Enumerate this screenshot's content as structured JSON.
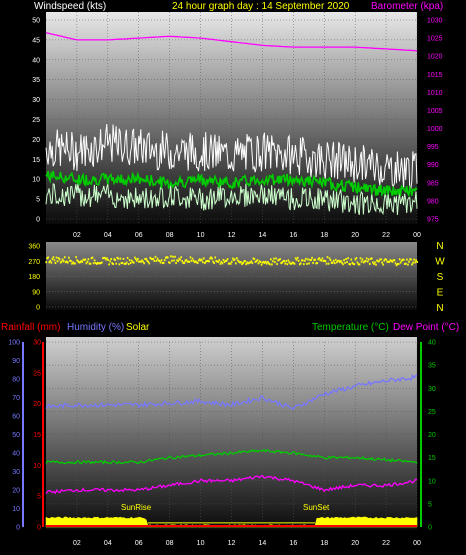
{
  "header": {
    "windspeed_label": "Windspeed (kts)",
    "title": "24 hour graph day : 14 September 2020",
    "barometer_label": "Barometer (kpa)"
  },
  "lower_header": {
    "rainfall_label": "Rainfall (mm)",
    "humidity_label": "Humidity (%)",
    "solar_label": "Solar",
    "temperature_label": "Temperature (°C)",
    "dewpoint_label": "Dew Point (°C)"
  },
  "annotations": {
    "sunrise": "SunRise",
    "sunset": "SunSet"
  },
  "colors": {
    "windspeed": "#ffffff",
    "wind_avg": "#00cc00",
    "wind_low": "#ccffcc",
    "barometer": "#ff00ff",
    "direction": "#ffff00",
    "rainfall": "#ff0000",
    "humidity": "#7777ff",
    "solar": "#ffff00",
    "temperature": "#00cc00",
    "dewpoint": "#ff00ff"
  },
  "chart_data": [
    {
      "type": "line",
      "name": "wind-barometer",
      "x_ticks": [
        "02",
        "04",
        "06",
        "08",
        "10",
        "12",
        "14",
        "16",
        "18",
        "20",
        "22",
        "00"
      ],
      "y_left_ticks": [
        "0",
        "5",
        "10",
        "15",
        "20",
        "25",
        "30",
        "35",
        "40",
        "45",
        "50"
      ],
      "y_left_range": [
        0,
        50
      ],
      "y_right_ticks": [
        "975",
        "980",
        "985",
        "990",
        "995",
        "1000",
        "1005",
        "1010",
        "1015",
        "1020",
        "1025",
        "1030"
      ],
      "y_right_range": [
        975,
        1030
      ],
      "hours": [
        0,
        2,
        4,
        6,
        8,
        10,
        12,
        14,
        16,
        18,
        20,
        22,
        24
      ],
      "gust": [
        18,
        17,
        19,
        18,
        17,
        17,
        16,
        17,
        16,
        15,
        14,
        13,
        12
      ],
      "avg": [
        11,
        10,
        10,
        10,
        9,
        10,
        9,
        10,
        10,
        9,
        8,
        7,
        7
      ],
      "low": [
        6,
        6,
        6,
        5,
        6,
        5,
        6,
        6,
        5,
        5,
        4,
        4,
        4
      ],
      "barometer": [
        1026.5,
        1024.5,
        1024.5,
        1025,
        1025.5,
        1025,
        1024,
        1023,
        1022.5,
        1022.5,
        1022.5,
        1022,
        1021.5
      ]
    },
    {
      "type": "scatter",
      "name": "wind-direction",
      "y_ticks": [
        "0",
        "90",
        "180",
        "270",
        "360"
      ],
      "y_range": [
        0,
        360
      ],
      "direction_labels": [
        "N",
        "W",
        "S",
        "E",
        "N"
      ],
      "hours": [
        0,
        2,
        4,
        6,
        8,
        10,
        12,
        14,
        16,
        18,
        20,
        22,
        24
      ],
      "direction": [
        280,
        275,
        270,
        275,
        280,
        275,
        270,
        265,
        270,
        275,
        270,
        265,
        270
      ]
    },
    {
      "type": "line",
      "name": "rain-humidity-temp",
      "y_left_rain_ticks": [
        "0",
        "5",
        "10",
        "15",
        "20",
        "25",
        "30"
      ],
      "y_left_rain_range": [
        0,
        30
      ],
      "y_left_hum_ticks": [
        "0",
        "10",
        "20",
        "30",
        "40",
        "50",
        "60",
        "70",
        "80",
        "90",
        "100"
      ],
      "y_left_hum_range": [
        0,
        100
      ],
      "y_right_ticks": [
        "0",
        "5",
        "10",
        "15",
        "20",
        "25",
        "30",
        "35",
        "40"
      ],
      "y_right_range": [
        0,
        40
      ],
      "hours": [
        0,
        2,
        4,
        6,
        8,
        10,
        12,
        14,
        16,
        18,
        20,
        22,
        24
      ],
      "humidity": [
        65,
        66,
        66,
        66,
        67,
        68,
        66,
        70,
        64,
        72,
        76,
        79,
        81
      ],
      "temperature": [
        14,
        14,
        14,
        14,
        15,
        15.5,
        16,
        16.5,
        16,
        15,
        15,
        14.5,
        14
      ],
      "dewpoint": [
        7.5,
        8,
        8,
        8,
        9,
        10,
        10,
        11,
        10,
        8,
        9,
        9,
        10
      ],
      "solar": [
        2,
        2,
        2,
        2,
        1,
        1,
        1,
        1,
        1,
        2,
        2,
        2,
        2
      ],
      "rainfall": [
        0,
        0,
        0,
        0,
        0,
        0,
        0,
        0,
        0,
        0,
        0,
        0,
        0
      ]
    }
  ]
}
